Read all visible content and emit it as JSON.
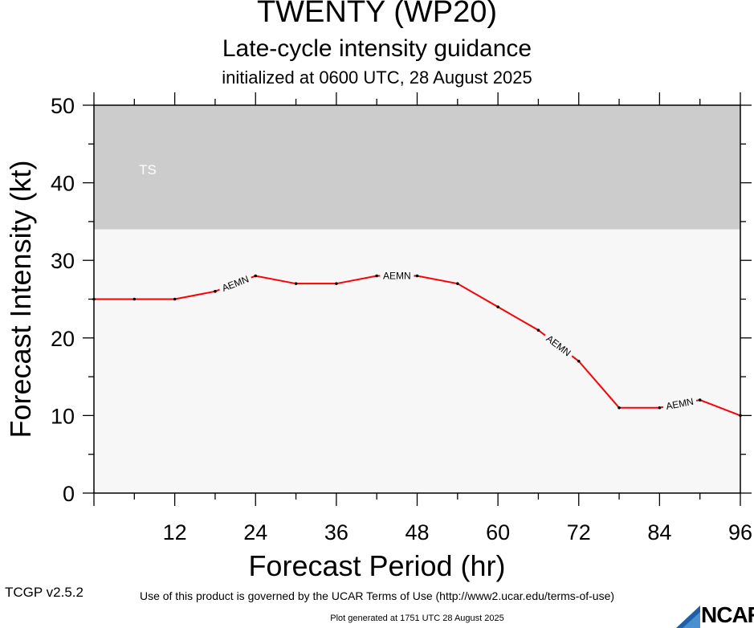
{
  "header": {
    "title": "TWENTY (WP20)",
    "subtitle": "Late-cycle intensity guidance",
    "init": "initialized at 0600 UTC, 28 August 2025"
  },
  "footer": {
    "version": "TCGP v2.5.2",
    "terms": "Use of this product is governed by the UCAR Terms of Use (http://www2.ucar.edu/terms-of-use)",
    "generated": "Plot generated at 1751 UTC   28 August 2025",
    "logo_text": "NCAR"
  },
  "chart_data": {
    "type": "line",
    "title": "TWENTY (WP20)",
    "xlabel": "Forecast Period (hr)",
    "ylabel": "Forecast Intensity (kt)",
    "xlim": [
      0,
      96
    ],
    "ylim": [
      0,
      50
    ],
    "xticks": [
      12,
      24,
      36,
      48,
      60,
      72,
      84,
      96
    ],
    "yticks": [
      0,
      10,
      20,
      30,
      40,
      50
    ],
    "bands": [
      {
        "label": "TS",
        "from": 34,
        "to": 50,
        "color": "#cccccc"
      }
    ],
    "plot_background": "#f7f7f7",
    "series": [
      {
        "name": "AEMN",
        "color": "#ff0000",
        "x": [
          0,
          6,
          12,
          18,
          24,
          30,
          36,
          42,
          48,
          54,
          60,
          66,
          72,
          78,
          84,
          90,
          96
        ],
        "y": [
          25,
          25,
          25,
          26,
          28,
          27,
          27,
          28,
          28,
          27,
          24,
          21,
          17,
          11,
          11,
          12,
          10
        ]
      }
    ]
  }
}
